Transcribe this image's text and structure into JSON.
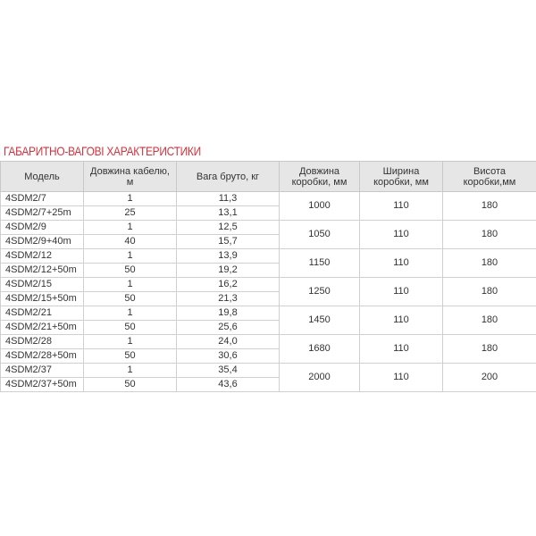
{
  "title": "ГАБАРИТНО-ВАГОВІ ХАРАКТЕРИСТИКИ",
  "table": {
    "header": [
      "Модель",
      "Довжина кабелю, м",
      "Вага бруто, кг",
      "Довжина коробки, мм",
      "Ширина коробки, мм",
      "Висота коробки,мм"
    ],
    "rows": [
      [
        "4SDM2/7",
        "1",
        "11,3"
      ],
      [
        "4SDM2/7+25m",
        "25",
        "13,1"
      ],
      [
        "4SDM2/9",
        "1",
        "12,5"
      ],
      [
        "4SDM2/9+40m",
        "40",
        "15,7"
      ],
      [
        "4SDM2/12",
        "1",
        "13,9"
      ],
      [
        "4SDM2/12+50m",
        "50",
        "19,2"
      ],
      [
        "4SDM2/15",
        "1",
        "16,2"
      ],
      [
        "4SDM2/15+50m",
        "50",
        "21,3"
      ],
      [
        "4SDM2/21",
        "1",
        "19,8"
      ],
      [
        "4SDM2/21+50m",
        "50",
        "25,6"
      ],
      [
        "4SDM2/28",
        "1",
        "24,0"
      ],
      [
        "4SDM2/28+50m",
        "50",
        "30,6"
      ],
      [
        "4SDM2/37",
        "1",
        "35,4"
      ],
      [
        "4SDM2/37+50m",
        "50",
        "43,6"
      ]
    ],
    "groups": [
      [
        "1000",
        "110",
        "180"
      ],
      [
        "1050",
        "110",
        "180"
      ],
      [
        "1150",
        "110",
        "180"
      ],
      [
        "1250",
        "110",
        "180"
      ],
      [
        "1450",
        "110",
        "180"
      ],
      [
        "1680",
        "110",
        "180"
      ],
      [
        "2000",
        "110",
        "200"
      ]
    ]
  }
}
